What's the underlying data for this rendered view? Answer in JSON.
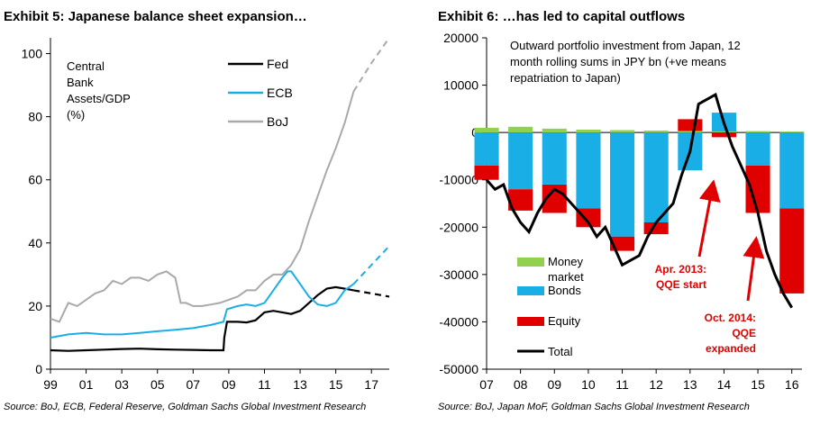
{
  "left": {
    "title": "Exhibit 5: Japanese balance sheet expansion…",
    "source": "Source: BoJ, ECB, Federal Reserve, Goldman Sachs Global Investment Research",
    "annotation_lines": [
      "Central",
      "Bank",
      "Assets/GDP",
      "(%)"
    ]
  },
  "right": {
    "title": "Exhibit 6: …has led to capital outflows",
    "source": "Source: BoJ, Japan MoF, Goldman Sachs Global Investment Research",
    "annotation_lines": [
      "Outward portfolio investment from Japan, 12",
      "month rolling sums in JPY bn (+ve means",
      "repatriation to Japan)"
    ],
    "callouts": [
      {
        "lines": [
          "Apr. 2013:",
          "QQE start"
        ],
        "color": "#e00000"
      },
      {
        "lines": [
          "Oct. 2014:",
          "QQE",
          "expanded"
        ],
        "color": "#e00000"
      }
    ]
  },
  "colors": {
    "fed": "#000000",
    "ecb": "#19aee6",
    "boj": "#a9a9a9",
    "money_market": "#92d050",
    "bonds": "#19aee6",
    "equity": "#e00000",
    "total": "#000000"
  },
  "chart_data": [
    {
      "type": "line",
      "title": "",
      "ylim": [
        0,
        105
      ],
      "xlim": [
        1999,
        2018
      ],
      "x_ticks": [
        1999,
        2001,
        2003,
        2005,
        2007,
        2009,
        2011,
        2013,
        2015,
        2017
      ],
      "x_tick_labels": [
        "99",
        "01",
        "03",
        "05",
        "07",
        "09",
        "11",
        "13",
        "15",
        "17"
      ],
      "y_ticks": [
        0,
        20,
        40,
        60,
        80,
        100
      ],
      "y_tick_labels": [
        "0",
        "20",
        "40",
        "60",
        "80",
        "100"
      ],
      "legend_position": "top-right",
      "series": [
        {
          "name": "Fed",
          "key": "fed",
          "x": [
            1999,
            2000,
            2001,
            2002,
            2003,
            2004,
            2005,
            2006,
            2007,
            2008,
            2008.7,
            2008.75,
            2008.9,
            2009.5,
            2010,
            2010.5,
            2011,
            2011.5,
            2012,
            2012.5,
            2013,
            2013.5,
            2014,
            2014.5,
            2015,
            2015.5,
            2016
          ],
          "values": [
            6,
            5.8,
            6,
            6.2,
            6.4,
            6.5,
            6.3,
            6.2,
            6.1,
            6,
            6,
            10,
            15,
            15,
            14.8,
            15.5,
            18,
            18.5,
            18,
            17.5,
            18.5,
            21,
            23.5,
            25.5,
            26,
            25.5,
            25
          ]
        },
        {
          "name": "Fed (projection)",
          "key": "fed",
          "dashed": true,
          "x": [
            2016,
            2017,
            2018
          ],
          "values": [
            25,
            24,
            23
          ]
        },
        {
          "name": "ECB",
          "key": "ecb",
          "x": [
            1999,
            2000,
            2001,
            2002,
            2003,
            2004,
            2005,
            2006,
            2007,
            2008,
            2008.7,
            2008.9,
            2009.5,
            2010,
            2010.5,
            2011,
            2011.5,
            2012,
            2012.3,
            2012.5,
            2013,
            2013.5,
            2014,
            2014.5,
            2015,
            2015.5,
            2016
          ],
          "values": [
            10,
            11,
            11.5,
            11,
            11,
            11.5,
            12,
            12.5,
            13,
            14,
            15,
            19,
            20,
            20.5,
            20,
            21,
            25,
            29,
            31,
            31,
            27,
            23,
            20.5,
            20,
            21,
            25,
            27
          ]
        },
        {
          "name": "ECB (projection)",
          "key": "ecb",
          "dashed": true,
          "x": [
            2016,
            2017,
            2018
          ],
          "values": [
            27,
            33,
            39
          ]
        },
        {
          "name": "BoJ",
          "key": "boj",
          "x": [
            1999,
            1999.5,
            2000,
            2000.5,
            2001,
            2001.5,
            2002,
            2002.5,
            2003,
            2003.5,
            2004,
            2004.5,
            2005,
            2005.5,
            2006,
            2006.3,
            2006.6,
            2007,
            2007.5,
            2008,
            2008.5,
            2009,
            2009.5,
            2010,
            2010.5,
            2011,
            2011.5,
            2012,
            2012.5,
            2013,
            2013.5,
            2014,
            2014.5,
            2015,
            2015.5,
            2016
          ],
          "values": [
            16,
            15,
            21,
            20,
            22,
            24,
            25,
            28,
            27,
            29,
            29,
            28,
            30,
            31,
            29,
            21,
            21,
            20,
            20,
            20.5,
            21,
            22,
            23,
            25,
            25,
            28,
            30,
            30,
            33,
            38,
            47,
            55,
            63,
            70,
            78,
            88
          ]
        },
        {
          "name": "BoJ (projection)",
          "key": "boj",
          "dashed": true,
          "x": [
            2016,
            2017,
            2018
          ],
          "values": [
            88,
            97,
            105
          ]
        }
      ]
    },
    {
      "type": "bar",
      "title": "Outward portfolio investment from Japan, 12 month rolling sums in JPY bn (+ve means repatriation to Japan)",
      "ylim": [
        -50000,
        20000
      ],
      "xlim": [
        2007,
        2016.3
      ],
      "x_ticks": [
        2007,
        2008,
        2009,
        2010,
        2011,
        2012,
        2013,
        2014,
        2015,
        2016
      ],
      "x_tick_labels": [
        "07",
        "08",
        "09",
        "10",
        "11",
        "12",
        "13",
        "14",
        "15",
        "16"
      ],
      "y_ticks": [
        -50000,
        -40000,
        -30000,
        -20000,
        -10000,
        0,
        10000,
        20000
      ],
      "y_tick_labels": [
        "-50000",
        "-40000",
        "-30000",
        "-20000",
        "-10000",
        "0",
        "10000",
        "20000"
      ],
      "legend_position": "bottom-left",
      "stacked": true,
      "series": [
        {
          "name": "Money market",
          "key": "money_market",
          "x": [
            2007,
            2008,
            2009,
            2010,
            2011,
            2012,
            2013,
            2014,
            2015,
            2016
          ],
          "values": [
            1000,
            1200,
            800,
            600,
            500,
            400,
            300,
            200,
            300,
            200
          ]
        },
        {
          "name": "Bonds",
          "key": "bonds",
          "x": [
            2007,
            2008,
            2009,
            2010,
            2011,
            2012,
            2013,
            2014,
            2015,
            2016
          ],
          "values": [
            -7000,
            -12000,
            -11000,
            -16000,
            -22000,
            -19000,
            -8000,
            4000,
            -7000,
            -16000
          ]
        },
        {
          "name": "Equity",
          "key": "equity",
          "x": [
            2007,
            2008,
            2009,
            2010,
            2011,
            2012,
            2013,
            2014,
            2015,
            2016
          ],
          "values": [
            -3000,
            -4500,
            -6000,
            -4000,
            -3000,
            -2500,
            2500,
            -1000,
            -10000,
            -18000
          ]
        },
        {
          "name": "Total",
          "key": "total",
          "type": "line",
          "x": [
            2007,
            2007.25,
            2007.5,
            2007.75,
            2008,
            2008.25,
            2008.5,
            2008.75,
            2009,
            2009.25,
            2009.5,
            2009.75,
            2010,
            2010.25,
            2010.5,
            2010.75,
            2011,
            2011.25,
            2011.5,
            2011.75,
            2012,
            2012.25,
            2012.5,
            2012.75,
            2013,
            2013.25,
            2013.5,
            2013.75,
            2014,
            2014.25,
            2014.5,
            2014.75,
            2015,
            2015.25,
            2015.5,
            2015.75,
            2016
          ],
          "values": [
            -10000,
            -12000,
            -11000,
            -16000,
            -19000,
            -21000,
            -17000,
            -14000,
            -12000,
            -13000,
            -15000,
            -17000,
            -19000,
            -22000,
            -20000,
            -24000,
            -28000,
            -27000,
            -26000,
            -22000,
            -19000,
            -17000,
            -15000,
            -9000,
            -4000,
            6000,
            7000,
            8000,
            2000,
            -3000,
            -7000,
            -11000,
            -17000,
            -25000,
            -30000,
            -34000,
            -37000
          ]
        }
      ]
    }
  ]
}
